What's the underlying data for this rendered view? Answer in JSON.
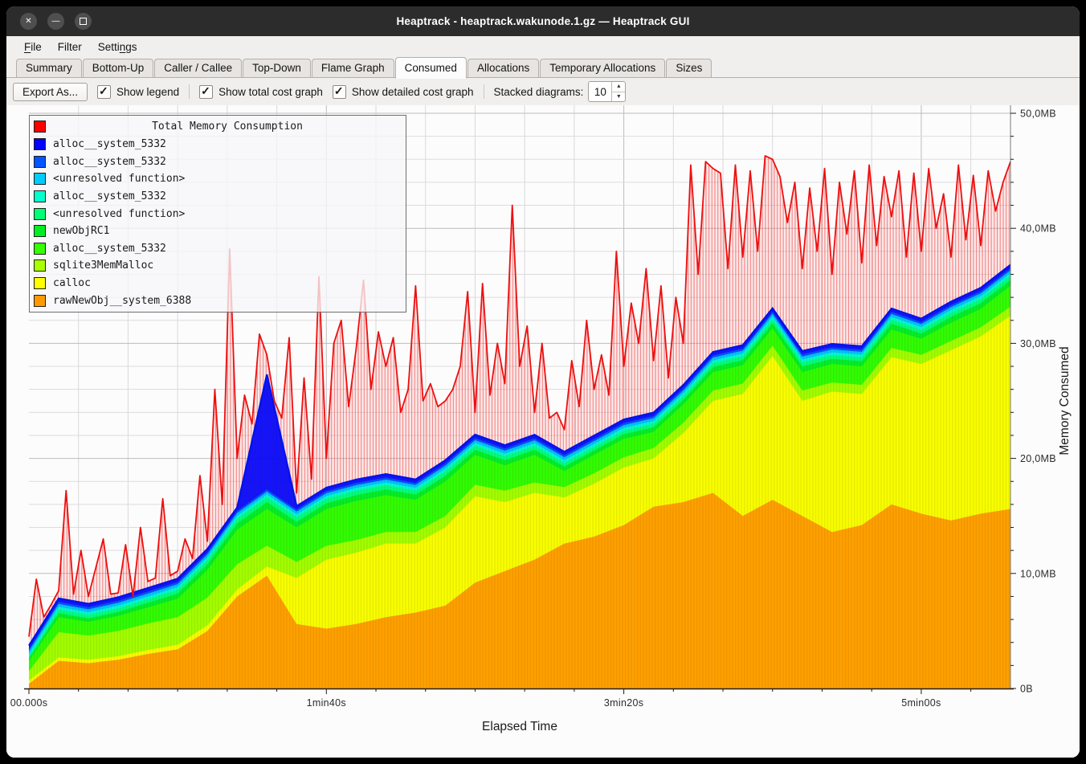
{
  "window": {
    "title": "Heaptrack - heaptrack.wakunode.1.gz — Heaptrack GUI",
    "controls": {
      "close": "✕",
      "minimize": "—",
      "maximize": ""
    }
  },
  "menu": {
    "items": [
      {
        "label": "File",
        "underline": 0
      },
      {
        "label": "Filter",
        "underline": -1
      },
      {
        "label": "Settings",
        "underline": 5
      }
    ]
  },
  "tabs": [
    {
      "label": "Summary",
      "active": false
    },
    {
      "label": "Bottom-Up",
      "active": false
    },
    {
      "label": "Caller / Callee",
      "active": false
    },
    {
      "label": "Top-Down",
      "active": false
    },
    {
      "label": "Flame Graph",
      "active": false
    },
    {
      "label": "Consumed",
      "active": true
    },
    {
      "label": "Allocations",
      "active": false
    },
    {
      "label": "Temporary Allocations",
      "active": false
    },
    {
      "label": "Sizes",
      "active": false
    }
  ],
  "toolbar": {
    "export_button": "Export As...",
    "checkboxes": [
      {
        "label": "Show legend",
        "checked": true
      },
      {
        "label": "Show total cost graph",
        "checked": true
      },
      {
        "label": "Show detailed cost graph",
        "checked": true
      }
    ],
    "stacked_label": "Stacked diagrams:",
    "stacked_value": "10"
  },
  "chart_data": {
    "type": "area",
    "title": "Total Memory Consumption",
    "xlabel": "Elapsed Time",
    "ylabel": "Memory Consumed",
    "x_range_s": [
      0,
      330
    ],
    "y_range_mb": [
      0,
      50
    ],
    "x_minor_per_major": 6,
    "y_minor_mb": 2,
    "grid": true,
    "legend_position": "top-left",
    "x_major_ticks": [
      {
        "t": 0,
        "label": "00.000s"
      },
      {
        "t": 100,
        "label": "1min40s"
      },
      {
        "t": 200,
        "label": "3min20s"
      },
      {
        "t": 300,
        "label": "5min00s"
      }
    ],
    "y_major_ticks": [
      {
        "mb": 0,
        "label": "0B"
      },
      {
        "mb": 10,
        "label": "10,0MB"
      },
      {
        "mb": 20,
        "label": "20,0MB"
      },
      {
        "mb": 30,
        "label": "30,0MB"
      },
      {
        "mb": 40,
        "label": "40,0MB"
      },
      {
        "mb": 50,
        "label": "50,0MB"
      }
    ],
    "total_series": {
      "name": "Total Memory Consumption",
      "color": "#ff0000",
      "step_s": 2.5,
      "values_mb": [
        4.5,
        9.5,
        6.2,
        7.3,
        8.5,
        17.2,
        8.2,
        12.0,
        8.0,
        10.5,
        13.0,
        8.2,
        8.3,
        12.5,
        8.0,
        14.0,
        9.3,
        9.6,
        16.5,
        9.8,
        10.2,
        13.0,
        11.3,
        18.5,
        12.8,
        26.0,
        16.0,
        38.2,
        20.0,
        25.5,
        23.0,
        30.8,
        29.0,
        25.0,
        23.5,
        30.5,
        17.0,
        27.0,
        18.2,
        35.8,
        20.0,
        30.0,
        32.0,
        24.5,
        29.5,
        35.5,
        26.0,
        31.0,
        28.0,
        30.5,
        24.0,
        26.0,
        35.0,
        25.0,
        26.5,
        24.5,
        25.0,
        26.0,
        28.0,
        34.5,
        24.0,
        35.2,
        25.5,
        30.0,
        26.5,
        42.0,
        28.0,
        31.5,
        24.0,
        30.0,
        23.5,
        24.0,
        22.5,
        28.5,
        24.5,
        32.0,
        26.0,
        29.0,
        25.5,
        38.0,
        28.0,
        33.5,
        30.0,
        36.5,
        28.5,
        35.0,
        27.0,
        34.0,
        30.0,
        45.5,
        36.0,
        45.8,
        45.2,
        44.8,
        36.5,
        45.5,
        37.5,
        45.0,
        38.0,
        46.3,
        46.0,
        44.5,
        40.5,
        44.0,
        36.5,
        43.5,
        38.0,
        45.2,
        36.0,
        44.0,
        39.5,
        45.0,
        37.0,
        45.5,
        38.5,
        44.5,
        41.0,
        45.0,
        37.5,
        44.8,
        38.0,
        45.2,
        40.0,
        43.0,
        37.5,
        45.5,
        39.0,
        44.6,
        38.5,
        45.0,
        41.5,
        44.0,
        45.8
      ]
    },
    "stacked_step_s": 10,
    "series": [
      {
        "name": "alloc__system_5332",
        "color": "#0000ff",
        "values_mb": [
          0.3,
          0.3,
          0.3,
          0.3,
          0.3,
          0.3,
          0.3,
          0.3,
          10.0,
          0.3,
          0.3,
          0.3,
          0.3,
          0.3,
          0.3,
          0.3,
          0.3,
          0.3,
          0.3,
          0.3,
          0.3,
          0.3,
          0.3,
          0.3,
          0.3,
          0.3,
          0.3,
          0.3,
          0.3,
          0.3,
          0.3,
          0.3,
          0.3,
          0.3
        ]
      },
      {
        "name": "alloc__system_5332",
        "color": "#0055ff",
        "values_mb": [
          0.18,
          0.18,
          0.18,
          0.18,
          0.18,
          0.18,
          0.18,
          0.18,
          0.18,
          0.18,
          0.18,
          0.18,
          0.18,
          0.18,
          0.18,
          0.18,
          0.18,
          0.18,
          0.18,
          0.18,
          0.18,
          0.18,
          0.18,
          0.18,
          0.18,
          0.18,
          0.18,
          0.18,
          0.18,
          0.18,
          0.18,
          0.18,
          0.18,
          0.18
        ]
      },
      {
        "name": "<unresolved function>",
        "color": "#00ccff",
        "values_mb": [
          0.25,
          0.25,
          0.25,
          0.25,
          0.25,
          0.25,
          0.25,
          0.25,
          0.25,
          0.25,
          0.25,
          0.25,
          0.25,
          0.25,
          0.25,
          0.25,
          0.25,
          0.25,
          0.25,
          0.25,
          0.25,
          0.25,
          0.25,
          0.25,
          0.25,
          0.25,
          0.25,
          0.25,
          0.25,
          0.25,
          0.25,
          0.25,
          0.25,
          0.25
        ]
      },
      {
        "name": "alloc__system_5332",
        "color": "#00ffcc",
        "values_mb": [
          0.25,
          0.25,
          0.25,
          0.25,
          0.25,
          0.25,
          0.25,
          0.25,
          0.25,
          0.25,
          0.25,
          0.25,
          0.25,
          0.25,
          0.25,
          0.25,
          0.25,
          0.25,
          0.25,
          0.25,
          0.25,
          0.25,
          0.25,
          0.25,
          0.25,
          0.25,
          0.25,
          0.25,
          0.25,
          0.25,
          0.25,
          0.25,
          0.25,
          0.25
        ]
      },
      {
        "name": "<unresolved function>",
        "color": "#00ff77",
        "values_mb": [
          0.15,
          0.3,
          0.28,
          0.3,
          0.3,
          0.32,
          0.35,
          0.4,
          0.42,
          0.38,
          0.38,
          0.38,
          0.36,
          0.34,
          0.36,
          0.34,
          0.32,
          0.32,
          0.3,
          0.3,
          0.3,
          0.3,
          0.3,
          0.32,
          0.32,
          0.32,
          0.35,
          0.32,
          0.32,
          0.35,
          0.32,
          0.35,
          0.35,
          0.35
        ]
      },
      {
        "name": "newObjRC1",
        "color": "#00ee22",
        "values_mb": [
          0.2,
          0.35,
          0.3,
          0.35,
          0.4,
          0.45,
          0.5,
          0.55,
          0.6,
          0.5,
          0.5,
          0.5,
          0.5,
          0.45,
          0.5,
          0.45,
          0.45,
          0.45,
          0.4,
          0.4,
          0.4,
          0.4,
          0.4,
          0.45,
          0.45,
          0.45,
          0.5,
          0.45,
          0.45,
          0.5,
          0.45,
          0.5,
          0.5,
          0.5
        ]
      },
      {
        "name": "alloc__system_5332",
        "color": "#33ff00",
        "values_mb": [
          0.9,
          1.3,
          1.2,
          1.3,
          1.4,
          1.6,
          2.4,
          3.0,
          3.2,
          3.0,
          3.2,
          3.4,
          3.2,
          2.8,
          3.0,
          2.6,
          2.2,
          2.4,
          1.4,
          1.6,
          1.6,
          1.4,
          1.6,
          1.6,
          1.6,
          1.5,
          1.6,
          1.6,
          1.6,
          1.6,
          1.4,
          1.6,
          1.6,
          1.8
        ]
      },
      {
        "name": "sqlite3MemMalloc",
        "color": "#aaff00",
        "values_mb": [
          0.8,
          2.2,
          2.1,
          2.2,
          2.3,
          2.4,
          2.4,
          2.2,
          1.8,
          1.4,
          1.2,
          1.1,
          1.0,
          1.0,
          1.0,
          1.0,
          1.0,
          0.9,
          0.9,
          0.9,
          0.9,
          0.9,
          0.9,
          0.9,
          0.9,
          0.9,
          0.9,
          0.8,
          0.8,
          0.8,
          0.8,
          0.8,
          0.8,
          0.8
        ]
      },
      {
        "name": "calloc",
        "color": "#ffff00",
        "values_mb": [
          0.3,
          0.3,
          0.3,
          0.3,
          0.35,
          0.4,
          0.5,
          0.6,
          0.8,
          4.0,
          6.0,
          6.2,
          6.4,
          6.0,
          6.8,
          7.5,
          6.0,
          5.8,
          4.0,
          4.6,
          5.0,
          4.2,
          6.0,
          8.0,
          10.6,
          12.5,
          10.0,
          12.2,
          11.4,
          12.8,
          13.0,
          14.8,
          15.4,
          16.8
        ]
      },
      {
        "name": "rawNewObj__system_6388",
        "color": "#ff9900",
        "values_mb": [
          0.4,
          2.4,
          2.2,
          2.5,
          3.0,
          3.4,
          5.0,
          8.0,
          9.8,
          5.6,
          5.2,
          5.6,
          6.2,
          6.6,
          7.2,
          9.2,
          10.2,
          11.2,
          12.6,
          13.2,
          14.2,
          15.8,
          16.2,
          17.0,
          15.0,
          16.4,
          15.0,
          13.6,
          14.2,
          16.0,
          15.2,
          14.6,
          15.2,
          15.6
        ]
      }
    ]
  }
}
